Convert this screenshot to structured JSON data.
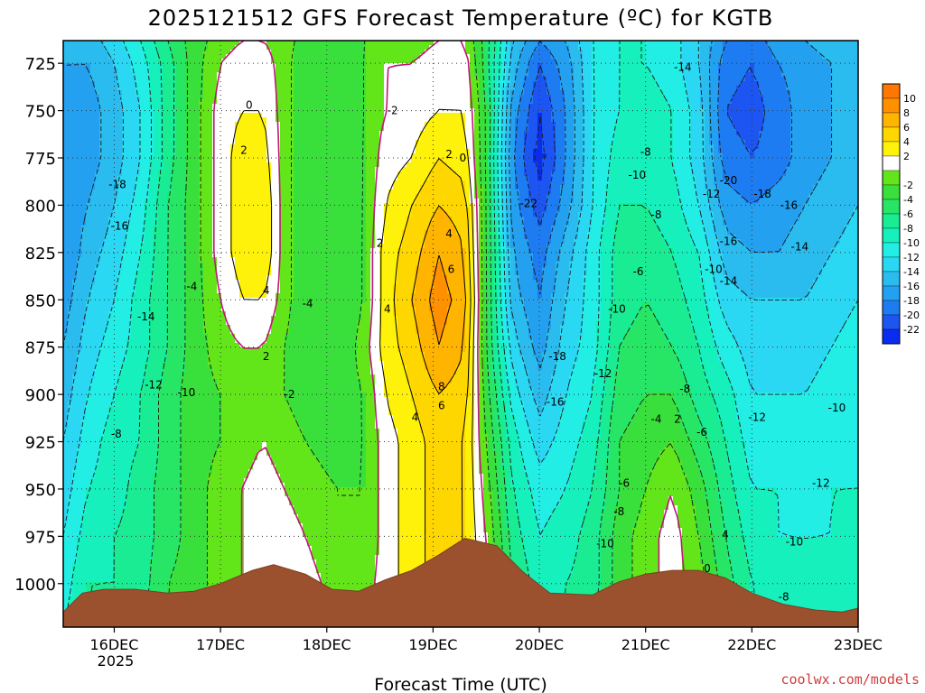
{
  "chart_data": {
    "type": "heatmap",
    "title": "2025121512 GFS Forecast Temperature (ºC) for KGTB",
    "xlabel": "Forecast Time (UTC)",
    "ylabel": "",
    "credit": "coolwx.com/models",
    "x_ticks": [
      "16DEC",
      "17DEC",
      "18DEC",
      "19DEC",
      "20DEC",
      "21DEC",
      "22DEC",
      "23DEC"
    ],
    "x_year_label": "2025",
    "y_ticks": [
      725,
      750,
      775,
      800,
      825,
      850,
      875,
      900,
      925,
      950,
      975,
      1000
    ],
    "ylim": [
      1023,
      713
    ],
    "xlim_days": [
      15.52,
      23.0
    ],
    "colorbar": {
      "levels": [
        -24,
        -22,
        -20,
        -18,
        -16,
        -14,
        -12,
        -10,
        -8,
        -6,
        -4,
        -2,
        0,
        2,
        4,
        6,
        8,
        10,
        12
      ],
      "tick_labels": [
        "-22",
        "-20",
        "-18",
        "-16",
        "-14",
        "-12",
        "-10",
        "-8",
        "-6",
        "-4",
        "-2",
        "2",
        "4",
        "6",
        "8",
        "10"
      ],
      "colors": [
        "#0a2cf0",
        "#1c55f2",
        "#1e7cf2",
        "#23a0f0",
        "#2bbcef",
        "#2ad8f4",
        "#22eee6",
        "#15f0bd",
        "#19ec92",
        "#27e665",
        "#39e03b",
        "#62e61a",
        "#ffffff",
        "#fff20a",
        "#ffd700",
        "#ffb400",
        "#ff9100",
        "#ff7700"
      ]
    },
    "columns": [
      {
        "x": 15.52,
        "t": [
          -14,
          -16,
          -17,
          -18,
          -18,
          -18,
          -17,
          -16,
          -15,
          -14,
          -13,
          -12,
          -11,
          -10
        ]
      },
      {
        "x": 15.75,
        "t": [
          -15,
          -16,
          -17,
          -17,
          -16,
          -15,
          -14,
          -13,
          -12,
          -11,
          -10,
          -9,
          -8,
          -8
        ]
      },
      {
        "x": 16.0,
        "t": [
          -13,
          -14,
          -15,
          -15,
          -14,
          -13,
          -12,
          -11,
          -10,
          -9,
          -9,
          -8,
          -8,
          -7
        ]
      },
      {
        "x": 16.25,
        "t": [
          -10,
          -11,
          -12,
          -12,
          -11,
          -10,
          -9,
          -9,
          -8,
          -8,
          -7,
          -7,
          -7,
          -6
        ]
      },
      {
        "x": 16.5,
        "t": [
          -6,
          -7,
          -7,
          -7,
          -6,
          -6,
          -6,
          -6,
          -5,
          -5,
          -5,
          -5,
          -4,
          -4
        ]
      },
      {
        "x": 16.75,
        "t": [
          -3,
          -3,
          -3,
          -3,
          -3,
          -3,
          -3,
          -3,
          -3,
          -3,
          -3,
          -3,
          -3,
          -3
        ]
      },
      {
        "x": 17.0,
        "t": [
          -1,
          0,
          1,
          1,
          1,
          1,
          0,
          -1,
          -2,
          -2,
          -1,
          -1,
          -1,
          -1
        ]
      },
      {
        "x": 17.2,
        "t": [
          0,
          1,
          2,
          3,
          3,
          3,
          2,
          0,
          -1,
          -1,
          0,
          0,
          0,
          0
        ]
      },
      {
        "x": 17.4,
        "t": [
          0,
          1,
          2,
          3,
          4,
          4,
          2,
          0,
          -1,
          0,
          1,
          1,
          1,
          1
        ]
      },
      {
        "x": 17.6,
        "t": [
          -1,
          -1,
          -1,
          -1,
          -1,
          -1,
          -1,
          -2,
          -2,
          -1,
          0,
          1,
          2,
          2
        ]
      },
      {
        "x": 17.8,
        "t": [
          -3,
          -4,
          -4,
          -4,
          -4,
          -4,
          -4,
          -4,
          -3,
          -2,
          -1,
          0,
          1,
          1
        ]
      },
      {
        "x": 18.1,
        "t": [
          -4,
          -4,
          -4,
          -4,
          -4,
          -4,
          -4,
          -4,
          -3,
          -3,
          -2,
          -2,
          -1,
          -1
        ]
      },
      {
        "x": 18.35,
        "t": [
          -2,
          -2,
          -2,
          -2,
          -2,
          -2,
          -2,
          -1,
          -2,
          -2,
          -2,
          -2,
          -1,
          -1
        ]
      },
      {
        "x": 18.55,
        "t": [
          -1,
          0,
          0,
          1,
          2,
          3,
          3,
          3,
          2,
          1,
          1,
          1,
          1,
          1
        ]
      },
      {
        "x": 18.8,
        "t": [
          -1,
          0,
          1,
          2,
          4,
          5,
          6,
          5,
          4,
          3,
          3,
          3,
          3,
          3
        ]
      },
      {
        "x": 19.05,
        "t": [
          0,
          1,
          2,
          4,
          6,
          8,
          9,
          8,
          6,
          5,
          5,
          5,
          5,
          5
        ]
      },
      {
        "x": 19.3,
        "t": [
          0,
          1,
          2,
          3,
          5,
          6,
          7,
          6,
          5,
          4,
          4,
          4,
          4,
          4
        ]
      },
      {
        "x": 19.5,
        "t": [
          -5,
          -5,
          -4,
          -4,
          -4,
          -4,
          -4,
          -4,
          -3,
          -2,
          -1,
          0,
          1,
          2
        ]
      },
      {
        "x": 19.75,
        "t": [
          -14,
          -15,
          -17,
          -18,
          -17,
          -16,
          -15,
          -13,
          -11,
          -9,
          -8,
          -7,
          -6,
          -5
        ]
      },
      {
        "x": 20.0,
        "t": [
          -18,
          -20,
          -22,
          -23,
          -21,
          -19,
          -18,
          -17,
          -15,
          -13,
          -11,
          -10,
          -9,
          -8
        ]
      },
      {
        "x": 20.25,
        "t": [
          -16,
          -17,
          -18,
          -18,
          -17,
          -15,
          -14,
          -13,
          -12,
          -11,
          -10,
          -9,
          -8,
          -8
        ]
      },
      {
        "x": 20.5,
        "t": [
          -12,
          -12,
          -12,
          -12,
          -12,
          -11,
          -11,
          -11,
          -10,
          -9,
          -8,
          -7,
          -7,
          -6
        ]
      },
      {
        "x": 20.75,
        "t": [
          -10,
          -10,
          -10,
          -9,
          -8,
          -7,
          -7,
          -6,
          -5,
          -4,
          -4,
          -3,
          -3,
          -3
        ]
      },
      {
        "x": 21.0,
        "t": [
          -10,
          -10,
          -9,
          -9,
          -8,
          -7,
          -6,
          -5,
          -4,
          -3,
          -2,
          -1,
          -1,
          -1
        ]
      },
      {
        "x": 21.25,
        "t": [
          -11,
          -11,
          -10,
          -10,
          -9,
          -8,
          -7,
          -6,
          -4,
          -2,
          0,
          1,
          1,
          1
        ]
      },
      {
        "x": 21.5,
        "t": [
          -14,
          -14,
          -13,
          -13,
          -12,
          -10,
          -9,
          -8,
          -7,
          -5,
          -3,
          -2,
          -1,
          -1
        ]
      },
      {
        "x": 21.75,
        "t": [
          -18,
          -19,
          -20,
          -19,
          -17,
          -15,
          -13,
          -11,
          -9,
          -8,
          -7,
          -6,
          -5,
          -5
        ]
      },
      {
        "x": 22.0,
        "t": [
          -19,
          -20,
          -21,
          -20,
          -18,
          -16,
          -14,
          -13,
          -12,
          -11,
          -10,
          -9,
          -8,
          -8
        ]
      },
      {
        "x": 22.25,
        "t": [
          -17,
          -18,
          -19,
          -19,
          -17,
          -16,
          -14,
          -13,
          -12,
          -11,
          -10,
          -10,
          -9,
          -8
        ]
      },
      {
        "x": 22.5,
        "t": [
          -16,
          -17,
          -17,
          -17,
          -16,
          -15,
          -14,
          -13,
          -12,
          -11,
          -11,
          -10,
          -10,
          -9
        ]
      },
      {
        "x": 22.75,
        "t": [
          -15,
          -16,
          -16,
          -16,
          -15,
          -14,
          -13,
          -12,
          -11,
          -11,
          -10,
          -10,
          -9,
          -9
        ]
      },
      {
        "x": 23.0,
        "t": [
          -14,
          -15,
          -15,
          -15,
          -14,
          -13,
          -12,
          -11,
          -11,
          -10,
          -10,
          -9,
          -9,
          -9
        ]
      }
    ],
    "column_levels": [
      713,
      725,
      750,
      775,
      800,
      825,
      850,
      875,
      900,
      925,
      950,
      975,
      1000,
      1023
    ],
    "surface_pressure": [
      {
        "x": 15.52,
        "p": 1015
      },
      {
        "x": 15.7,
        "p": 1005
      },
      {
        "x": 15.9,
        "p": 1003
      },
      {
        "x": 16.2,
        "p": 1003
      },
      {
        "x": 16.5,
        "p": 1005
      },
      {
        "x": 16.75,
        "p": 1004
      },
      {
        "x": 17.0,
        "p": 1000
      },
      {
        "x": 17.3,
        "p": 993
      },
      {
        "x": 17.5,
        "p": 990
      },
      {
        "x": 17.8,
        "p": 995
      },
      {
        "x": 18.05,
        "p": 1003
      },
      {
        "x": 18.3,
        "p": 1004
      },
      {
        "x": 18.55,
        "p": 998
      },
      {
        "x": 18.8,
        "p": 993
      },
      {
        "x": 19.05,
        "p": 985
      },
      {
        "x": 19.3,
        "p": 976
      },
      {
        "x": 19.6,
        "p": 980
      },
      {
        "x": 19.85,
        "p": 994
      },
      {
        "x": 20.1,
        "p": 1005
      },
      {
        "x": 20.5,
        "p": 1006
      },
      {
        "x": 20.75,
        "p": 999
      },
      {
        "x": 21.0,
        "p": 995
      },
      {
        "x": 21.25,
        "p": 993
      },
      {
        "x": 21.5,
        "p": 993
      },
      {
        "x": 21.75,
        "p": 997
      },
      {
        "x": 22.0,
        "p": 1005
      },
      {
        "x": 22.3,
        "p": 1011
      },
      {
        "x": 22.6,
        "p": 1014
      },
      {
        "x": 22.85,
        "p": 1015
      },
      {
        "x": 23.0,
        "p": 1013
      }
    ],
    "contour_labels": [
      {
        "x": 17.27,
        "p": 747,
        "text": "0"
      },
      {
        "x": 17.22,
        "p": 771,
        "text": "2"
      },
      {
        "x": 17.43,
        "p": 845,
        "text": "4"
      },
      {
        "x": 17.43,
        "p": 880,
        "text": "2"
      },
      {
        "x": 16.73,
        "p": 843,
        "text": "-4"
      },
      {
        "x": 16.03,
        "p": 789,
        "text": "-18"
      },
      {
        "x": 16.05,
        "p": 811,
        "text": "-16"
      },
      {
        "x": 16.3,
        "p": 859,
        "text": "-14"
      },
      {
        "x": 16.37,
        "p": 895,
        "text": "-12"
      },
      {
        "x": 16.68,
        "p": 899,
        "text": "-10"
      },
      {
        "x": 16.02,
        "p": 921,
        "text": "-8"
      },
      {
        "x": 17.65,
        "p": 900,
        "text": "-2"
      },
      {
        "x": 17.82,
        "p": 852,
        "text": "-4"
      },
      {
        "x": 18.5,
        "p": 820,
        "text": "2"
      },
      {
        "x": 18.57,
        "p": 855,
        "text": "4"
      },
      {
        "x": 18.62,
        "p": 750,
        "text": "-2"
      },
      {
        "x": 19.15,
        "p": 773,
        "text": "2"
      },
      {
        "x": 19.28,
        "p": 775,
        "text": "0"
      },
      {
        "x": 19.15,
        "p": 815,
        "text": "4"
      },
      {
        "x": 19.17,
        "p": 834,
        "text": "6"
      },
      {
        "x": 19.08,
        "p": 896,
        "text": "8"
      },
      {
        "x": 19.08,
        "p": 906,
        "text": "6"
      },
      {
        "x": 18.83,
        "p": 912,
        "text": "4"
      },
      {
        "x": 19.9,
        "p": 799,
        "text": "-22"
      },
      {
        "x": 20.17,
        "p": 880,
        "text": "-18"
      },
      {
        "x": 20.15,
        "p": 904,
        "text": "-16"
      },
      {
        "x": 20.73,
        "p": 855,
        "text": "-10"
      },
      {
        "x": 20.6,
        "p": 889,
        "text": "-12"
      },
      {
        "x": 20.93,
        "p": 835,
        "text": "-6"
      },
      {
        "x": 21.1,
        "p": 805,
        "text": "-8"
      },
      {
        "x": 20.92,
        "p": 784,
        "text": "-10"
      },
      {
        "x": 21.0,
        "p": 772,
        "text": "-8"
      },
      {
        "x": 21.35,
        "p": 727,
        "text": "-14"
      },
      {
        "x": 21.62,
        "p": 794,
        "text": "-12"
      },
      {
        "x": 21.78,
        "p": 787,
        "text": "-20"
      },
      {
        "x": 22.1,
        "p": 794,
        "text": "-18"
      },
      {
        "x": 22.35,
        "p": 800,
        "text": "-16"
      },
      {
        "x": 21.78,
        "p": 819,
        "text": "-16"
      },
      {
        "x": 21.64,
        "p": 834,
        "text": "-10"
      },
      {
        "x": 21.78,
        "p": 840,
        "text": "-14"
      },
      {
        "x": 22.45,
        "p": 822,
        "text": "-14"
      },
      {
        "x": 21.37,
        "p": 897,
        "text": "-8"
      },
      {
        "x": 21.3,
        "p": 913,
        "text": "2"
      },
      {
        "x": 21.53,
        "p": 920,
        "text": "-6"
      },
      {
        "x": 21.1,
        "p": 913,
        "text": "-4"
      },
      {
        "x": 20.8,
        "p": 947,
        "text": "-6"
      },
      {
        "x": 20.75,
        "p": 962,
        "text": "-8"
      },
      {
        "x": 20.62,
        "p": 979,
        "text": "-10"
      },
      {
        "x": 21.75,
        "p": 974,
        "text": "4"
      },
      {
        "x": 21.58,
        "p": 992,
        "text": "0"
      },
      {
        "x": 22.05,
        "p": 912,
        "text": "-12"
      },
      {
        "x": 22.65,
        "p": 947,
        "text": "-12"
      },
      {
        "x": 22.4,
        "p": 978,
        "text": "-10"
      },
      {
        "x": 22.3,
        "p": 1007,
        "text": "-8"
      },
      {
        "x": 22.8,
        "p": 907,
        "text": "-10"
      }
    ]
  }
}
